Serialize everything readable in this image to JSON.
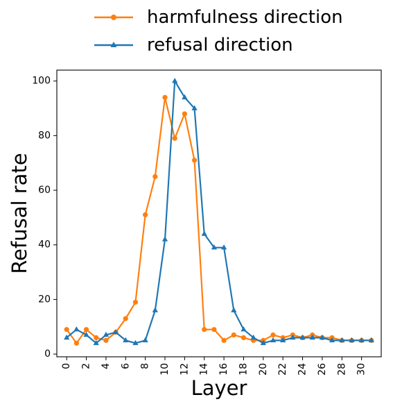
{
  "chart_data": {
    "type": "line",
    "xlabel": "Layer",
    "ylabel": "Refusal rate",
    "xlim": [
      -1,
      32
    ],
    "ylim": [
      -1,
      104
    ],
    "xticks": [
      "0",
      "2",
      "4",
      "6",
      "8",
      "10",
      "12",
      "14",
      "16",
      "18",
      "20",
      "22",
      "24",
      "26",
      "28",
      "30"
    ],
    "yticks": [
      "0",
      "20",
      "40",
      "60",
      "80",
      "100"
    ],
    "grid": false,
    "legend_position": "top",
    "x": [
      0,
      1,
      2,
      3,
      4,
      5,
      6,
      7,
      8,
      9,
      10,
      11,
      12,
      13,
      14,
      15,
      16,
      17,
      18,
      19,
      20,
      21,
      22,
      23,
      24,
      25,
      26,
      27,
      28,
      29,
      30,
      31
    ],
    "series": [
      {
        "name": "harmfulness direction",
        "color": "#ff7f0e",
        "marker": "circle",
        "values": [
          9,
          4,
          9,
          6,
          5,
          8,
          13,
          19,
          51,
          65,
          94,
          79,
          88,
          71,
          9,
          9,
          5,
          7,
          6,
          5,
          5,
          7,
          6,
          7,
          6,
          7,
          6,
          6,
          5,
          5,
          5,
          5
        ]
      },
      {
        "name": "refusal direction",
        "color": "#1f77b4",
        "marker": "triangle",
        "values": [
          6,
          9,
          7,
          4,
          7,
          8,
          5,
          4,
          5,
          16,
          42,
          100,
          94,
          90,
          44,
          39,
          39,
          16,
          9,
          6,
          4,
          5,
          5,
          6,
          6,
          6,
          6,
          5,
          5,
          5,
          5,
          5
        ]
      }
    ]
  }
}
